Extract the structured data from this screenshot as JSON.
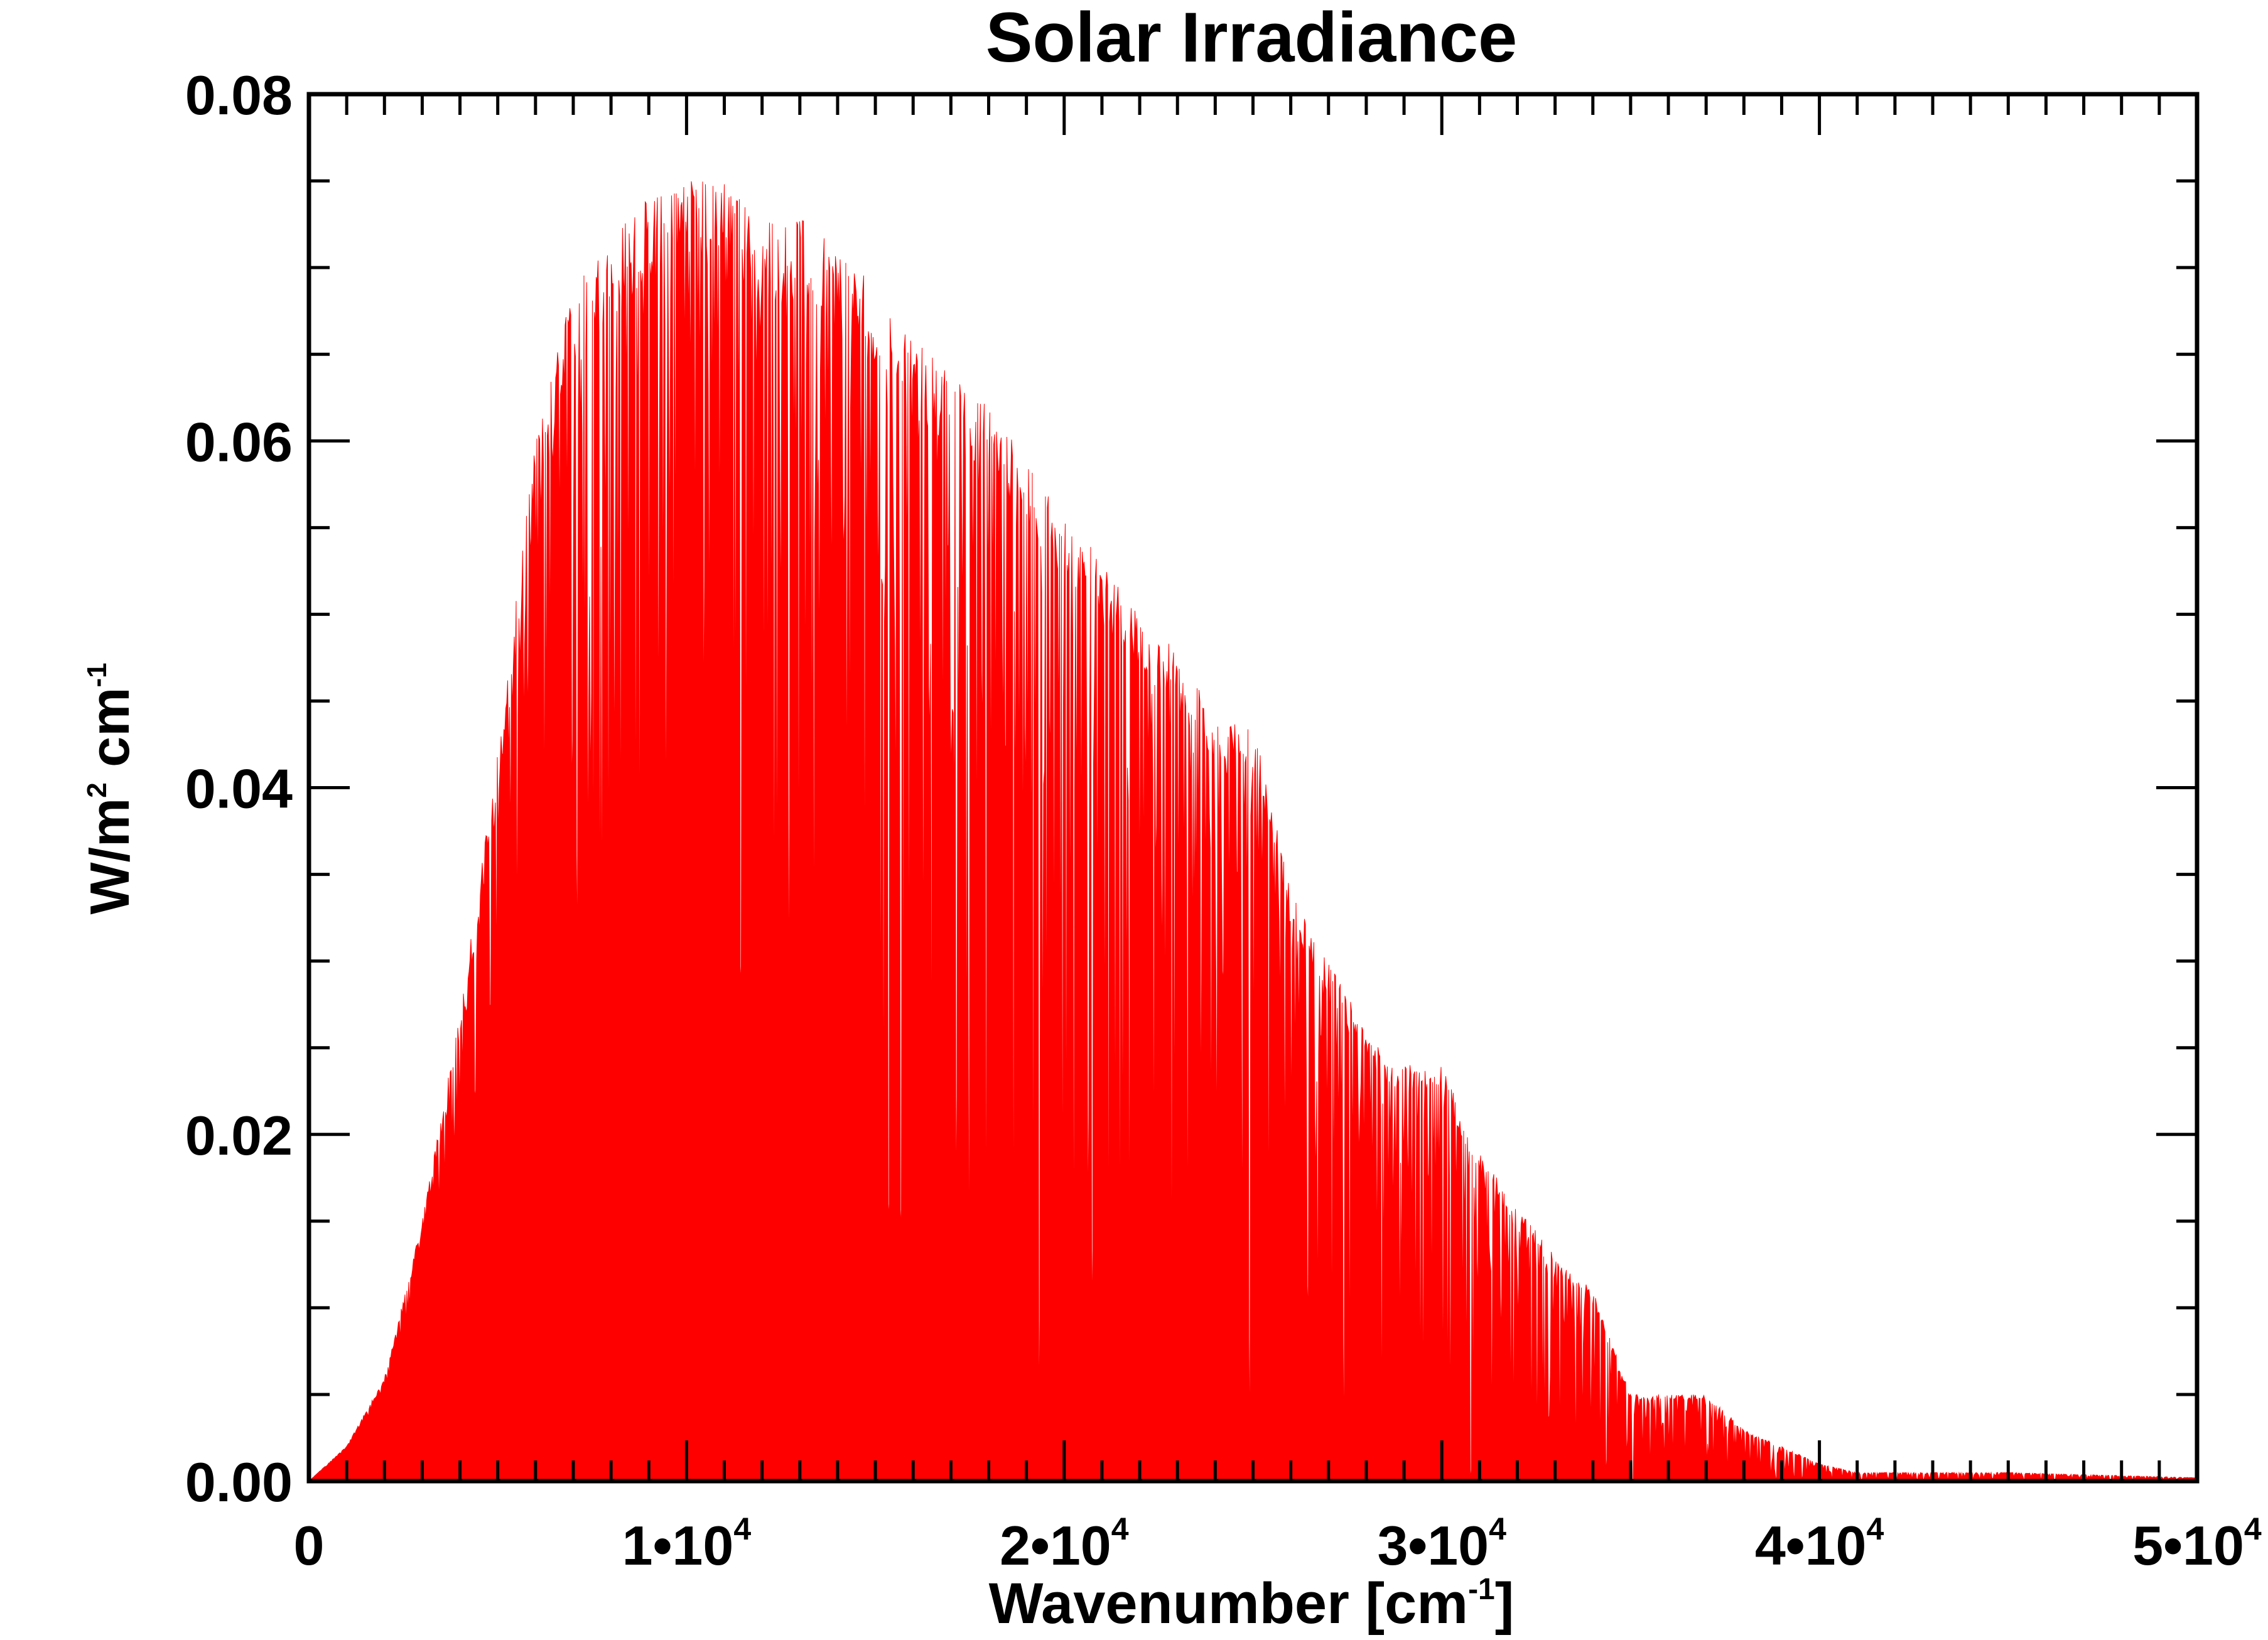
{
  "chart_data": {
    "type": "area",
    "title": "Solar Irradiance",
    "xlabel": "Wavenumber [cm",
    "xlabel_sup": "-1",
    "xlabel_end": "]",
    "ylabel": "W/m",
    "ylabel_sup1": "2",
    "ylabel_mid": " cm",
    "ylabel_sup2": "-1",
    "xlim": [
      0,
      50000
    ],
    "ylim": [
      0,
      0.08
    ],
    "grid": false,
    "series_color": "#ff0000",
    "x_ticks": [
      {
        "value": 0,
        "base": "0",
        "exp": ""
      },
      {
        "value": 10000,
        "base": "1•10",
        "exp": "4"
      },
      {
        "value": 20000,
        "base": "2•10",
        "exp": "4"
      },
      {
        "value": 30000,
        "base": "3•10",
        "exp": "4"
      },
      {
        "value": 40000,
        "base": "4•10",
        "exp": "4"
      },
      {
        "value": 50000,
        "base": "5•10",
        "exp": "4"
      }
    ],
    "y_ticks": [
      {
        "value": 0,
        "label": "0.00"
      },
      {
        "value": 0.02,
        "label": "0.02"
      },
      {
        "value": 0.04,
        "label": "0.04"
      },
      {
        "value": 0.06,
        "label": "0.06"
      },
      {
        "value": 0.08,
        "label": "0.08"
      }
    ],
    "x_minor_step": 1000,
    "y_minor_step": 0.005,
    "x": [
      0,
      1000,
      2000,
      3000,
      4000,
      5000,
      6000,
      7000,
      8000,
      9000,
      10000,
      11000,
      12000,
      13000,
      14000,
      15000,
      16000,
      17000,
      18000,
      19000,
      20000,
      21000,
      22000,
      23000,
      24000,
      25000,
      26000,
      27000,
      28000,
      29000,
      30000,
      31000,
      32000,
      33000,
      34000,
      35000,
      36000,
      37000,
      38000,
      39000,
      40000,
      41000,
      45000,
      50000
    ],
    "upper_envelope": [
      0,
      0.002,
      0.006,
      0.015,
      0.027,
      0.042,
      0.06,
      0.069,
      0.072,
      0.074,
      0.075,
      0.075,
      0.073,
      0.073,
      0.071,
      0.069,
      0.066,
      0.064,
      0.062,
      0.059,
      0.056,
      0.053,
      0.05,
      0.048,
      0.044,
      0.044,
      0.034,
      0.03,
      0.026,
      0.024,
      0.024,
      0.019,
      0.016,
      0.013,
      0.011,
      0.005,
      0.005,
      0.005,
      0.003,
      0.002,
      0.001,
      0.0005,
      0.0005,
      0.0002
    ],
    "lower_envelope": [
      0,
      0.002,
      0.005,
      0.012,
      0.02,
      0.025,
      0.03,
      0.025,
      0.025,
      0.025,
      0.035,
      0.03,
      0.025,
      0.02,
      0.02,
      0.015,
      0.01,
      0.005,
      0.002,
      0.001,
      0.003,
      0.002,
      0.001,
      0,
      0,
      0,
      0,
      0,
      0,
      0,
      0,
      0,
      0,
      0,
      0,
      0,
      0,
      0,
      0,
      0,
      0,
      0,
      0,
      0
    ]
  }
}
